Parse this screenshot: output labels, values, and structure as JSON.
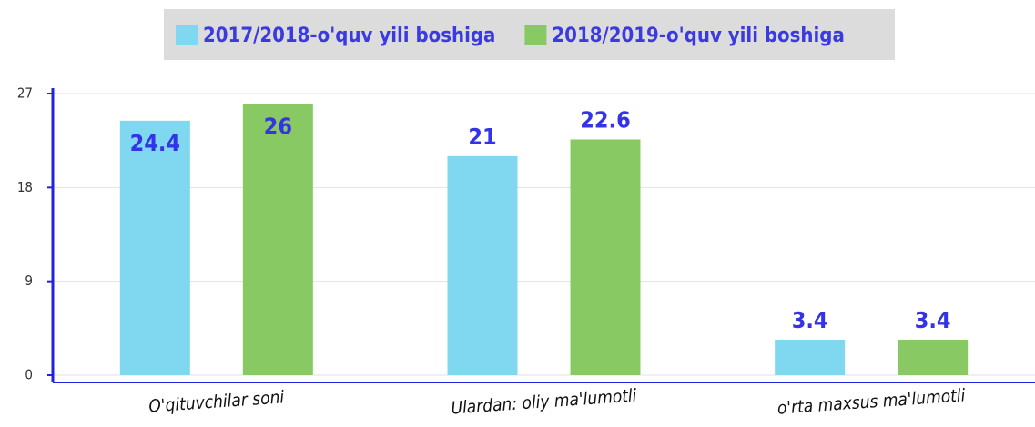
{
  "chart_data": {
    "type": "bar",
    "categories": [
      "O'qituvchilar soni",
      "Ulardan: oliy ma'lumotli",
      "o'rta maxsus ma'lumotli"
    ],
    "series": [
      {
        "name": "2017/2018-o'quv yili boshiga",
        "color": "#7fd8ef",
        "values": [
          24.4,
          21,
          3.4
        ]
      },
      {
        "name": "2018/2019-o'quv yili boshiga",
        "color": "#88c963",
        "values": [
          26,
          22.6,
          3.4
        ]
      }
    ],
    "ylim": [
      0,
      27
    ],
    "yticks": [
      0,
      9,
      18,
      27
    ],
    "grid": true,
    "legend": "top"
  }
}
